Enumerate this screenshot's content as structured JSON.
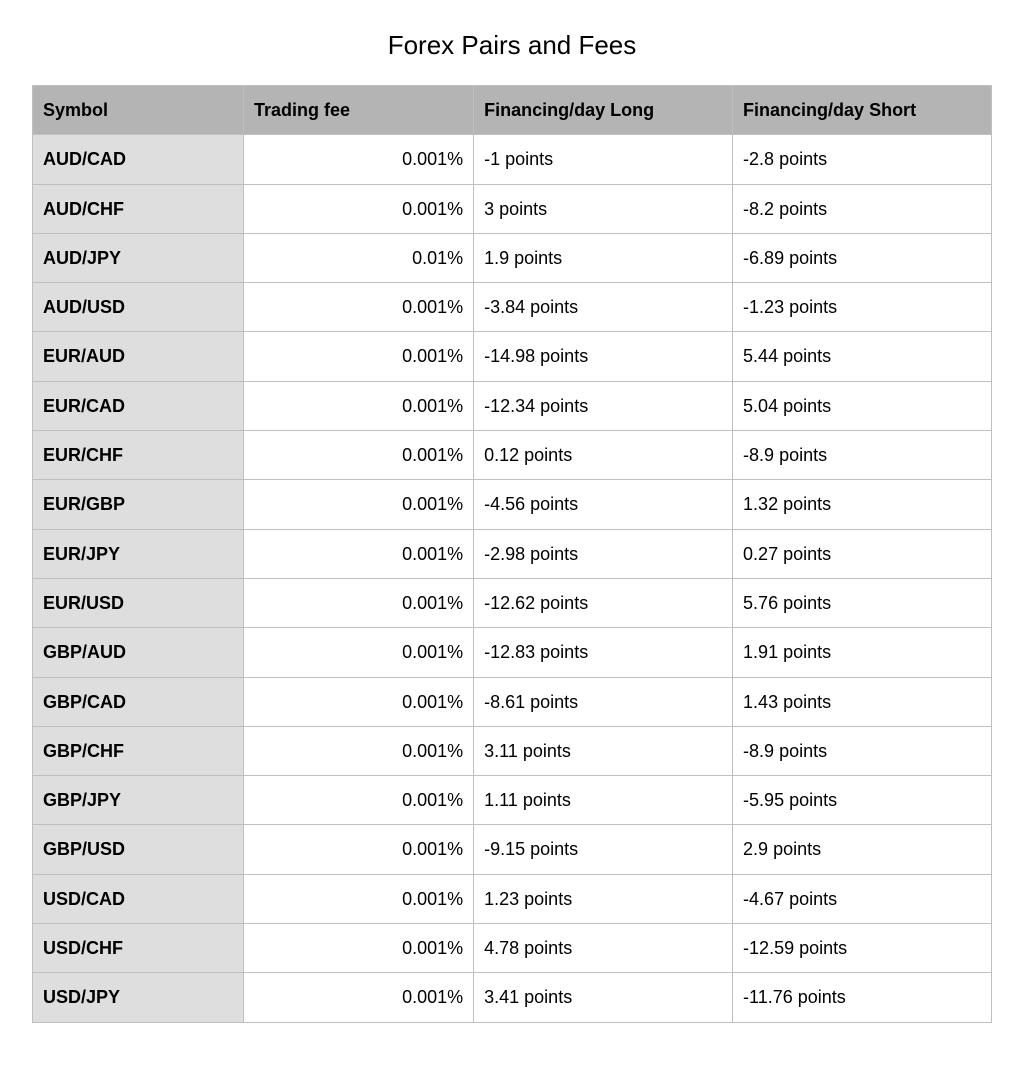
{
  "title": "Forex Pairs and Fees",
  "columns": [
    "Symbol",
    "Trading fee",
    "Financing/day Long",
    "Financing/day Short"
  ],
  "rows": [
    {
      "symbol": "AUD/CAD",
      "fee": "0.001%",
      "long": "-1 points",
      "short": "-2.8 points"
    },
    {
      "symbol": "AUD/CHF",
      "fee": "0.001%",
      "long": "3 points",
      "short": "-8.2 points"
    },
    {
      "symbol": "AUD/JPY",
      "fee": "0.01%",
      "long": "1.9 points",
      "short": "-6.89 points"
    },
    {
      "symbol": "AUD/USD",
      "fee": "0.001%",
      "long": "-3.84 points",
      "short": "-1.23 points"
    },
    {
      "symbol": "EUR/AUD",
      "fee": "0.001%",
      "long": "-14.98 points",
      "short": "5.44 points"
    },
    {
      "symbol": "EUR/CAD",
      "fee": "0.001%",
      "long": "-12.34 points",
      "short": "5.04 points"
    },
    {
      "symbol": "EUR/CHF",
      "fee": "0.001%",
      "long": "0.12 points",
      "short": "-8.9 points"
    },
    {
      "symbol": "EUR/GBP",
      "fee": "0.001%",
      "long": "-4.56 points",
      "short": "1.32 points"
    },
    {
      "symbol": "EUR/JPY",
      "fee": "0.001%",
      "long": "-2.98 points",
      "short": "0.27 points"
    },
    {
      "symbol": "EUR/USD",
      "fee": "0.001%",
      "long": "-12.62 points",
      "short": "5.76 points"
    },
    {
      "symbol": "GBP/AUD",
      "fee": "0.001%",
      "long": "-12.83 points",
      "short": "1.91 points"
    },
    {
      "symbol": "GBP/CAD",
      "fee": "0.001%",
      "long": "-8.61 points",
      "short": "1.43 points"
    },
    {
      "symbol": "GBP/CHF",
      "fee": "0.001%",
      "long": "3.11 points",
      "short": "-8.9 points"
    },
    {
      "symbol": "GBP/JPY",
      "fee": "0.001%",
      "long": "1.11 points",
      "short": "-5.95 points"
    },
    {
      "symbol": "GBP/USD",
      "fee": "0.001%",
      "long": "-9.15 points",
      "short": "2.9 points"
    },
    {
      "symbol": "USD/CAD",
      "fee": "0.001%",
      "long": "1.23 points",
      "short": "-4.67 points"
    },
    {
      "symbol": "USD/CHF",
      "fee": "0.001%",
      "long": "4.78 points",
      "short": "-12.59 points"
    },
    {
      "symbol": "USD/JPY",
      "fee": "0.001%",
      "long": "3.41 points",
      "short": "-11.76 points"
    }
  ],
  "style": {
    "header_bg": "#b4b4b4",
    "symbol_col_bg": "#dedede",
    "cell_bg": "#ffffff",
    "border_color": "#bfbfbf",
    "title_fontsize": 26,
    "cell_fontsize": 18
  }
}
